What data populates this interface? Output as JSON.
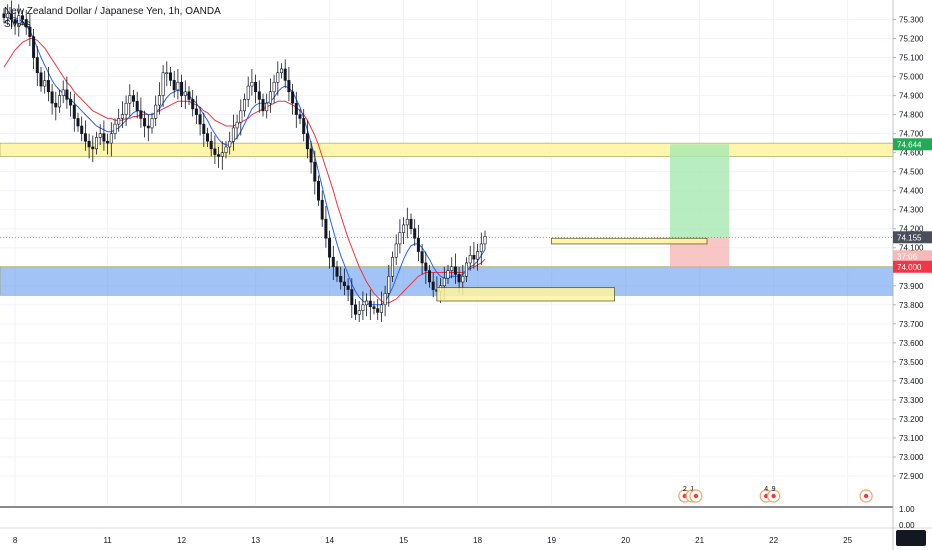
{
  "header": {
    "title": "New Zealand Dollar / Japanese Yen, 1h, OANDA",
    "indicator": "SMAs"
  },
  "colors": {
    "up": "#131722",
    "down": "#131722",
    "sma_fast": "#2962ff",
    "sma_slow": "#f23645",
    "resistance_zone": "#fff59d",
    "support_zone": "#6fa3f0",
    "target_zone": "#a5e8b0",
    "stop_zone": "#f7b8b8",
    "target_tag": "#22ab54",
    "stop_tag": "#f23645",
    "last_tag": "#4a4e5a"
  },
  "price_tags": {
    "target": "74.644",
    "last": "74.155",
    "countdown": "37:06",
    "stop": "74.000"
  },
  "chart_data": {
    "type": "candlestick",
    "title": "New Zealand Dollar / Japanese Yen, 1h, OANDA",
    "ylim": [
      72.8,
      75.35
    ],
    "y_ticks": [
      75.3,
      75.2,
      75.1,
      75.0,
      74.9,
      74.8,
      74.7,
      74.6,
      74.5,
      74.4,
      74.3,
      74.2,
      74.1,
      74.0,
      73.9,
      73.8,
      73.7,
      73.6,
      73.5,
      73.4,
      73.3,
      73.2,
      73.1,
      73.0,
      72.9
    ],
    "y_tick_labels": [
      "75.300",
      "75.200",
      "75.100",
      "75.000",
      "74.900",
      "74.800",
      "74.700",
      "74.600",
      "74.500",
      "74.400",
      "74.300",
      "74.200",
      "74.100",
      "74.000",
      "73.900",
      "73.800",
      "73.700",
      "73.600",
      "73.500",
      "73.400",
      "73.300",
      "73.200",
      "73.100",
      "73.000",
      "72.900"
    ],
    "x_labels": [
      "8",
      "11",
      "12",
      "13",
      "14",
      "15",
      "18",
      "19",
      "20",
      "21",
      "22",
      "25"
    ],
    "x_label_bar_index": [
      3,
      28,
      48,
      68,
      88,
      108,
      128,
      148,
      168,
      188,
      208,
      228
    ],
    "closes": [
      75.31,
      75.33,
      75.3,
      75.28,
      75.32,
      75.3,
      75.26,
      75.21,
      75.1,
      75.02,
      74.95,
      74.98,
      74.92,
      74.86,
      74.84,
      74.9,
      74.93,
      74.88,
      74.85,
      74.78,
      74.74,
      74.7,
      74.66,
      74.63,
      74.62,
      74.68,
      74.7,
      74.66,
      74.65,
      74.7,
      74.75,
      74.78,
      74.8,
      74.86,
      74.9,
      74.87,
      74.82,
      74.78,
      74.74,
      74.73,
      74.78,
      74.85,
      74.9,
      75.02,
      75.02,
      74.98,
      74.93,
      74.97,
      74.9,
      74.92,
      74.88,
      74.83,
      74.8,
      74.75,
      74.7,
      74.66,
      74.62,
      74.59,
      74.58,
      74.6,
      74.63,
      74.66,
      74.73,
      74.76,
      74.82,
      74.88,
      74.95,
      74.97,
      74.92,
      74.88,
      74.82,
      74.86,
      74.92,
      74.97,
      75.02,
      75.04,
      74.98,
      74.92,
      74.86,
      74.8,
      74.78,
      74.7,
      74.62,
      74.55,
      74.45,
      74.35,
      74.25,
      74.15,
      74.05,
      74.0,
      73.95,
      73.92,
      73.9,
      73.88,
      73.8,
      73.75,
      73.77,
      73.8,
      73.82,
      73.79,
      73.78,
      73.76,
      73.8,
      73.86,
      73.95,
      74.05,
      74.12,
      74.18,
      74.22,
      74.25,
      74.2,
      74.15,
      74.08,
      74.02,
      73.98,
      73.92,
      73.88,
      73.87,
      73.9,
      73.94,
      73.98,
      74.0,
      73.96,
      73.92,
      73.95,
      74.02,
      74.06,
      74.04,
      74.08,
      74.12,
      74.16
    ],
    "sma_fast": [
      75.28,
      75.3,
      75.31,
      75.31,
      75.3,
      75.29,
      75.27,
      75.24,
      75.2,
      75.15,
      75.1,
      75.06,
      75.02,
      74.98,
      74.95,
      74.93,
      74.91,
      74.89,
      74.88,
      74.86,
      74.84,
      74.82,
      74.8,
      74.78,
      74.76,
      74.74,
      74.73,
      74.72,
      74.71,
      74.71,
      74.72,
      74.73,
      74.75,
      74.77,
      74.79,
      74.81,
      74.82,
      74.82,
      74.81,
      74.8,
      74.8,
      74.81,
      74.83,
      74.86,
      74.89,
      74.91,
      74.92,
      74.93,
      74.92,
      74.91,
      74.9,
      74.88,
      74.86,
      74.83,
      74.8,
      74.77,
      74.73,
      74.7,
      74.67,
      74.65,
      74.64,
      74.64,
      74.66,
      74.68,
      74.71,
      74.75,
      74.79,
      74.83,
      74.85,
      74.86,
      74.86,
      74.86,
      74.87,
      74.89,
      74.92,
      74.94,
      74.95,
      74.94,
      74.92,
      74.88,
      74.84,
      74.78,
      74.72,
      74.65,
      74.58,
      74.5,
      74.42,
      74.34,
      74.26,
      74.19,
      74.12,
      74.06,
      74.01,
      73.96,
      73.91,
      73.87,
      73.84,
      73.82,
      73.81,
      73.8,
      73.8,
      73.8,
      73.8,
      73.82,
      73.85,
      73.89,
      73.94,
      73.99,
      74.04,
      74.08,
      74.11,
      74.12,
      74.12,
      74.1,
      74.07,
      74.04,
      74.0,
      73.97,
      73.95,
      73.94,
      73.94,
      73.95,
      73.95,
      73.95,
      73.96,
      73.98,
      74.0,
      74.01,
      74.03,
      74.06,
      74.09
    ],
    "sma_slow": [
      75.05,
      75.08,
      75.11,
      75.14,
      75.16,
      75.18,
      75.19,
      75.2,
      75.2,
      75.19,
      75.17,
      75.15,
      75.12,
      75.09,
      75.06,
      75.03,
      75.0,
      74.97,
      74.95,
      74.92,
      74.9,
      74.88,
      74.86,
      74.84,
      74.82,
      74.81,
      74.8,
      74.79,
      74.78,
      74.78,
      74.77,
      74.77,
      74.77,
      74.78,
      74.78,
      74.79,
      74.79,
      74.8,
      74.8,
      74.8,
      74.8,
      74.81,
      74.82,
      74.83,
      74.84,
      74.85,
      74.86,
      74.87,
      74.87,
      74.87,
      74.87,
      74.86,
      74.85,
      74.84,
      74.82,
      74.81,
      74.79,
      74.77,
      74.76,
      74.75,
      74.74,
      74.74,
      74.74,
      74.75,
      74.76,
      74.77,
      74.78,
      74.8,
      74.81,
      74.82,
      74.83,
      74.84,
      74.85,
      74.86,
      74.87,
      74.87,
      74.87,
      74.86,
      74.85,
      74.84,
      74.82,
      74.8,
      74.77,
      74.73,
      74.69,
      74.64,
      74.58,
      74.52,
      74.46,
      74.4,
      74.33,
      74.27,
      74.21,
      74.15,
      74.1,
      74.05,
      74.0,
      73.96,
      73.92,
      73.89,
      73.86,
      73.84,
      73.82,
      73.81,
      73.81,
      73.82,
      73.83,
      73.85,
      73.87,
      73.89,
      73.91,
      73.93,
      73.95,
      73.96,
      73.97,
      73.97,
      73.97,
      73.97,
      73.97,
      73.97,
      73.97,
      73.97,
      73.97,
      73.97,
      73.97,
      73.98,
      73.99,
      74.0,
      74.01,
      74.02,
      74.04
    ],
    "zones": [
      {
        "name": "resistance",
        "y1": 74.58,
        "y2": 74.65,
        "x_from_bar": 0,
        "x_to_bar": 999
      },
      {
        "name": "support",
        "y1": 73.85,
        "y2": 74.0,
        "x_from_bar": 0,
        "x_to_bar": 999
      }
    ],
    "boxes": [
      {
        "y1": 74.12,
        "y2": 74.15,
        "x_from_bar": 148,
        "x_to_bar": 190
      },
      {
        "y1": 73.82,
        "y2": 73.89,
        "x_from_bar": 117,
        "x_to_bar": 165
      }
    ],
    "position": {
      "entry": 74.155,
      "target": 74.644,
      "stop": 74.0,
      "x_from_bar": 180,
      "x_to_bar": 196
    },
    "events": [
      {
        "bar": 184,
        "label": "2"
      },
      {
        "bar": 186,
        "label": "1"
      },
      {
        "bar": 187,
        "label": ""
      },
      {
        "bar": 206,
        "label": "4"
      },
      {
        "bar": 208,
        "label": "9"
      },
      {
        "bar": 233,
        "label": ""
      }
    ],
    "subpane": {
      "y_ticks": [
        "1.00",
        "0.00"
      ]
    }
  }
}
